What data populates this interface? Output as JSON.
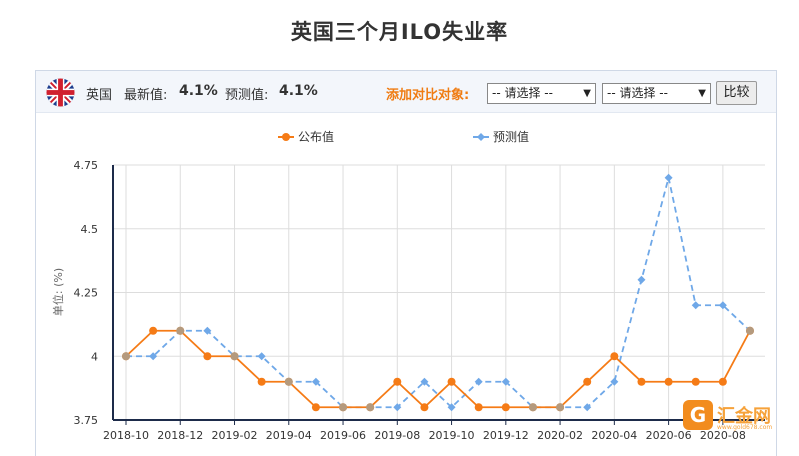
{
  "page": {
    "title": "英国三个月ILO失业率"
  },
  "header": {
    "country": "英国",
    "latest_label": "最新值:",
    "latest_value": "4.1%",
    "forecast_label": "预测值:",
    "forecast_value": "4.1%",
    "compare_label": "添加对比对象:",
    "select_1": "-- 请选择 --",
    "select_2": "-- 请选择 --",
    "compare_button": "比较"
  },
  "colors": {
    "published": "#f57b16",
    "forecast": "#6fa8e8",
    "compare_label": "#f07c12"
  },
  "watermark": {
    "text": "汇金网",
    "sub": "www.gold678.com",
    "logo": "G"
  },
  "chart_data": {
    "type": "line",
    "ylabel": "单位: (%)",
    "ylim": [
      3.75,
      4.75
    ],
    "yticks": [
      "4.75",
      "4.5",
      "4.25",
      "4",
      "3.75"
    ],
    "ytick_values": [
      4.75,
      4.5,
      4.25,
      4.0,
      3.75
    ],
    "x": [
      "2018-10",
      "2018-11",
      "2018-12",
      "2019-01",
      "2019-02",
      "2019-03",
      "2019-04",
      "2019-05",
      "2019-06",
      "2019-07",
      "2019-08",
      "2019-09",
      "2019-10",
      "2019-11",
      "2019-12",
      "2020-01",
      "2020-02",
      "2020-03",
      "2020-04",
      "2020-05",
      "2020-06",
      "2020-07",
      "2020-08",
      "2020-09"
    ],
    "xtick_labels": [
      "2018-10",
      "2018-12",
      "2019-02",
      "2019-04",
      "2019-06",
      "2019-08",
      "2019-10",
      "2019-12",
      "2020-02",
      "2020-04",
      "2020-06",
      "2020-08"
    ],
    "legend_position": "top-center",
    "grid": true,
    "series": [
      {
        "name": "公布值",
        "values": [
          4.0,
          4.1,
          4.1,
          4.0,
          4.0,
          3.9,
          3.9,
          3.8,
          3.8,
          3.8,
          3.9,
          3.8,
          3.9,
          3.8,
          3.8,
          3.8,
          3.8,
          3.9,
          4.0,
          3.9,
          3.9,
          3.9,
          3.9,
          4.1
        ]
      },
      {
        "name": "预测值",
        "values": [
          4.0,
          4.0,
          4.1,
          4.1,
          4.0,
          4.0,
          3.9,
          3.9,
          3.8,
          3.8,
          3.8,
          3.9,
          3.8,
          3.9,
          3.9,
          3.8,
          3.8,
          3.8,
          3.9,
          4.3,
          4.7,
          4.2,
          4.2,
          4.1
        ]
      }
    ]
  }
}
